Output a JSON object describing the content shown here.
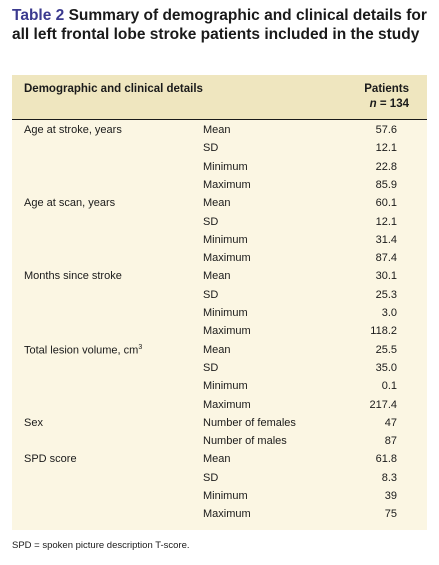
{
  "title": {
    "number": "Table 2",
    "text": "Summary of demographic and clinical details for all left frontal lobe stroke patients included in the study"
  },
  "header": {
    "left": "Demographic and clinical details",
    "right_line1": "Patients",
    "right_n_italic": "n",
    "right_n_value": " = 134"
  },
  "rows": [
    {
      "group": "Age at stroke, years",
      "stat": "Mean",
      "value": "57.6"
    },
    {
      "group": "",
      "stat": "SD",
      "value": "12.1"
    },
    {
      "group": "",
      "stat": "Minimum",
      "value": "22.8"
    },
    {
      "group": "",
      "stat": "Maximum",
      "value": "85.9"
    },
    {
      "group": "Age at scan, years",
      "stat": "Mean",
      "value": "60.1"
    },
    {
      "group": "",
      "stat": "SD",
      "value": "12.1"
    },
    {
      "group": "",
      "stat": "Minimum",
      "value": "31.4"
    },
    {
      "group": "",
      "stat": "Maximum",
      "value": "87.4"
    },
    {
      "group": "Months since stroke",
      "stat": "Mean",
      "value": "30.1"
    },
    {
      "group": "",
      "stat": "SD",
      "value": "25.3"
    },
    {
      "group": "",
      "stat": "Minimum",
      "value": "3.0"
    },
    {
      "group": "",
      "stat": "Maximum",
      "value": "118.2"
    },
    {
      "group": "Total lesion volume, cm",
      "sup": "3",
      "stat": "Mean",
      "value": "25.5"
    },
    {
      "group": "",
      "stat": "SD",
      "value": "35.0"
    },
    {
      "group": "",
      "stat": "Minimum",
      "value": "0.1"
    },
    {
      "group": "",
      "stat": "Maximum",
      "value": "217.4"
    },
    {
      "group": "Sex",
      "stat": "Number of females",
      "value": "47"
    },
    {
      "group": "",
      "stat": "Number of males",
      "value": "87"
    },
    {
      "group": "SPD score",
      "stat": "Mean",
      "value": "61.8"
    },
    {
      "group": "",
      "stat": "SD",
      "value": "8.3"
    },
    {
      "group": "",
      "stat": "Minimum",
      "value": "39"
    },
    {
      "group": "",
      "stat": "Maximum",
      "value": "75"
    }
  ],
  "footer": "SPD = spoken picture description T-score."
}
